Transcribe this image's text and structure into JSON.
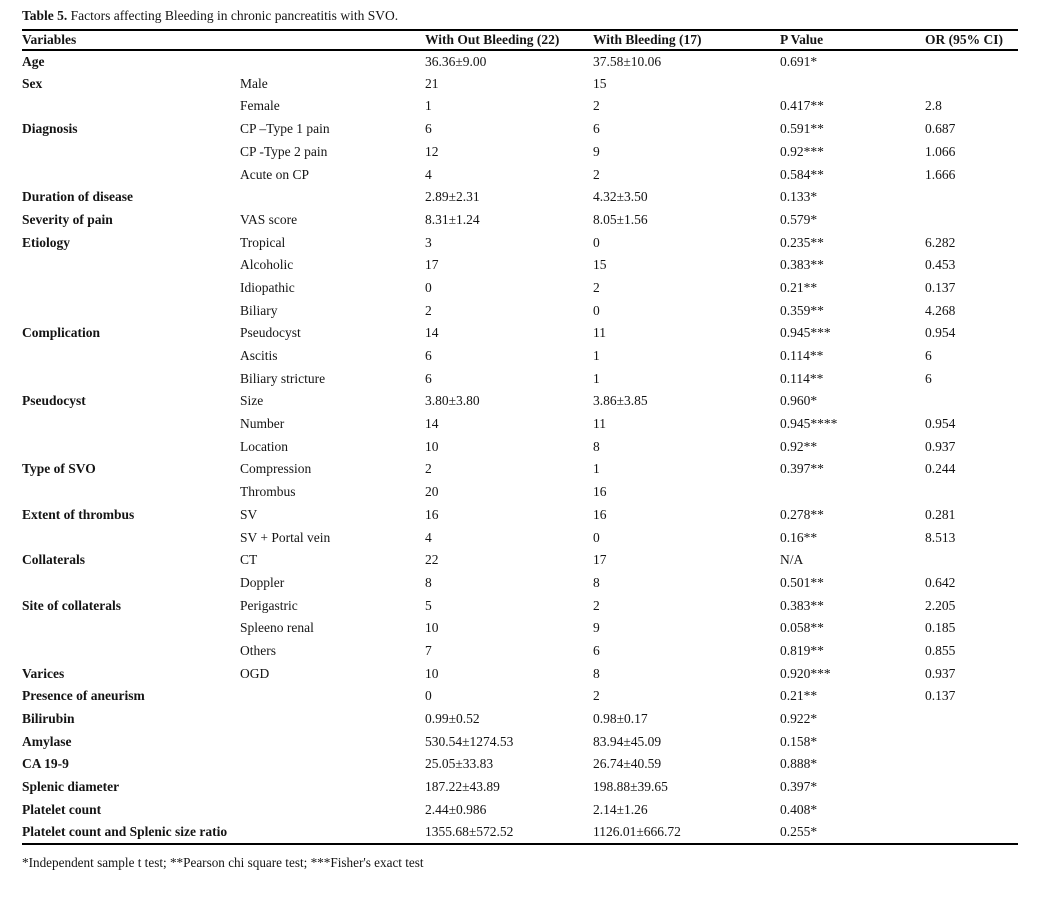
{
  "title": {
    "prefix": "Table 5.",
    "text": "Factors affecting Bleeding in chronic pancreatitis with SVO."
  },
  "table": {
    "columns": [
      "Variables",
      "",
      "With Out Bleeding (22)",
      "With Bleeding (17)",
      "P Value",
      "OR (95% CI)"
    ],
    "rows": [
      [
        "Age",
        "",
        "36.36±9.00",
        "37.58±10.06",
        "0.691*",
        ""
      ],
      [
        "Sex",
        "Male",
        "21",
        "15",
        "",
        ""
      ],
      [
        "",
        "Female",
        "1",
        "2",
        "0.417**",
        "2.8"
      ],
      [
        "Diagnosis",
        "CP –Type 1 pain",
        "6",
        "6",
        "0.591**",
        "0.687"
      ],
      [
        "",
        "CP -Type 2 pain",
        "12",
        "9",
        "0.92***",
        "1.066"
      ],
      [
        "",
        "Acute on CP",
        "4",
        "2",
        "0.584**",
        "1.666"
      ],
      [
        "Duration of disease",
        "",
        "2.89±2.31",
        "4.32±3.50",
        "0.133*",
        ""
      ],
      [
        "Severity of pain",
        "VAS score",
        "8.31±1.24",
        "8.05±1.56",
        "0.579*",
        ""
      ],
      [
        "Etiology",
        "Tropical",
        "3",
        "0",
        "0.235**",
        "6.282"
      ],
      [
        "",
        "Alcoholic",
        "17",
        "15",
        "0.383**",
        "0.453"
      ],
      [
        "",
        "Idiopathic",
        "0",
        "2",
        "0.21**",
        "0.137"
      ],
      [
        "",
        "Biliary",
        "2",
        "0",
        "0.359**",
        "4.268"
      ],
      [
        "Complication",
        "Pseudocyst",
        "14",
        "11",
        "0.945***",
        "0.954"
      ],
      [
        "",
        "Ascitis",
        "6",
        "1",
        "0.114**",
        "6"
      ],
      [
        "",
        "Biliary stricture",
        "6",
        "1",
        "0.114**",
        "6"
      ],
      [
        "Pseudocyst",
        "Size",
        "3.80±3.80",
        "3.86±3.85",
        "0.960*",
        ""
      ],
      [
        "",
        "Number",
        "14",
        "11",
        "0.945****",
        "0.954"
      ],
      [
        "",
        "Location",
        "10",
        "8",
        "0.92**",
        "0.937"
      ],
      [
        "Type of SVO",
        "Compression",
        "2",
        "1",
        "0.397**",
        "0.244"
      ],
      [
        "",
        "Thrombus",
        "20",
        "16",
        "",
        ""
      ],
      [
        "Extent of thrombus",
        "SV",
        "16",
        "16",
        "0.278**",
        "0.281"
      ],
      [
        "",
        "SV + Portal vein",
        "4",
        "0",
        "0.16**",
        "8.513"
      ],
      [
        "Collaterals",
        "CT",
        "22",
        "17",
        "N/A",
        ""
      ],
      [
        "",
        "Doppler",
        "8",
        "8",
        "0.501**",
        "0.642"
      ],
      [
        "Site of collaterals",
        "Perigastric",
        "5",
        "2",
        "0.383**",
        "2.205"
      ],
      [
        "",
        "Spleeno renal",
        "10",
        "9",
        "0.058**",
        "0.185"
      ],
      [
        "",
        "Others",
        "7",
        "6",
        "0.819**",
        "0.855"
      ],
      [
        "Varices",
        "OGD",
        "10",
        "8",
        "0.920***",
        "0.937"
      ],
      [
        "Presence of aneurism",
        "",
        "0",
        "2",
        "0.21**",
        "0.137"
      ],
      [
        "Bilirubin",
        "",
        "0.99±0.52",
        "0.98±0.17",
        "0.922*",
        ""
      ],
      [
        "Amylase",
        "",
        "530.54±1274.53",
        "83.94±45.09",
        "0.158*",
        ""
      ],
      [
        "CA 19-9",
        "",
        "25.05±33.83",
        "26.74±40.59",
        "0.888*",
        ""
      ],
      [
        "Splenic diameter",
        "",
        "187.22±43.89",
        "198.88±39.65",
        "0.397*",
        ""
      ],
      [
        "Platelet count",
        "",
        "2.44±0.986",
        "2.14±1.26",
        "0.408*",
        ""
      ],
      [
        "Platelet count and Splenic size ratio",
        "",
        "1355.68±572.52",
        "1126.01±666.72",
        "0.255*",
        ""
      ]
    ]
  },
  "footnote": "*Independent sample t test; **Pearson chi square test; ***Fisher's exact test"
}
